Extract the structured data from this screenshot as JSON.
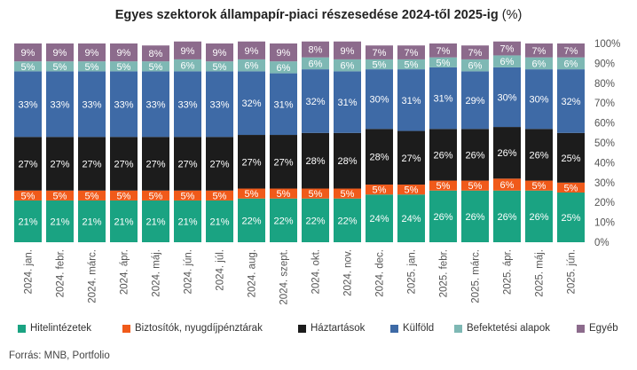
{
  "title": "Egyes szektorok állampapír-piaci részesedése 2024-től 2025-ig",
  "title_unit": "(%)",
  "source": "Forrás: MNB, Portfolio",
  "chart_data": {
    "type": "bar",
    "stacked": true,
    "categories": [
      "2024. jan.",
      "2024. febr.",
      "2024. márc.",
      "2024. ápr.",
      "2024. máj.",
      "2024. jún.",
      "2024. júl.",
      "2024. aug.",
      "2024. szept.",
      "2024. okt.",
      "2024. nov.",
      "2024. dec.",
      "2025. jan.",
      "2025. febr.",
      "2025. márc.",
      "2025. ápr.",
      "2025. máj.",
      "2025. jún."
    ],
    "series": [
      {
        "name": "Hitelintézetek",
        "color": "#1aa382",
        "label_color": "#ffffff",
        "values": [
          21,
          21,
          21,
          21,
          21,
          21,
          21,
          22,
          22,
          22,
          22,
          24,
          24,
          26,
          26,
          26,
          26,
          25
        ]
      },
      {
        "name": "Biztosítók, nyugdíjpénztárak",
        "color": "#f05a1a",
        "label_color": "#ffffff",
        "values": [
          5,
          5,
          5,
          5,
          5,
          5,
          5,
          5,
          5,
          5,
          5,
          5,
          5,
          5,
          5,
          6,
          5,
          5
        ]
      },
      {
        "name": "Háztartások",
        "color": "#1c1c1c",
        "label_color": "#ffffff",
        "values": [
          27,
          27,
          27,
          27,
          27,
          27,
          27,
          27,
          27,
          28,
          28,
          28,
          27,
          26,
          26,
          26,
          26,
          25
        ]
      },
      {
        "name": "Külföld",
        "color": "#3e6aa6",
        "label_color": "#ffffff",
        "values": [
          33,
          33,
          33,
          33,
          33,
          33,
          33,
          32,
          31,
          32,
          31,
          30,
          31,
          31,
          29,
          30,
          30,
          32
        ]
      },
      {
        "name": "Befektetési alapok",
        "color": "#7eb8b4",
        "label_color": "#ffffff",
        "values": [
          5,
          5,
          5,
          5,
          5,
          6,
          5,
          6,
          6,
          6,
          6,
          5,
          5,
          5,
          6,
          6,
          6,
          6
        ]
      },
      {
        "name": "Egyéb",
        "color": "#8c6b8c",
        "label_color": "#ffffff",
        "values": [
          9,
          9,
          9,
          9,
          8,
          9,
          9,
          9,
          9,
          8,
          9,
          7,
          7,
          7,
          7,
          7,
          7,
          7
        ]
      }
    ],
    "y_axis": {
      "position": "right",
      "ylim": [
        0,
        100
      ],
      "ticks": [
        "0%",
        "10%",
        "20%",
        "30%",
        "40%",
        "50%",
        "60%",
        "70%",
        "80%",
        "90%",
        "100%"
      ]
    },
    "legend_position": "bottom",
    "grid": false
  }
}
